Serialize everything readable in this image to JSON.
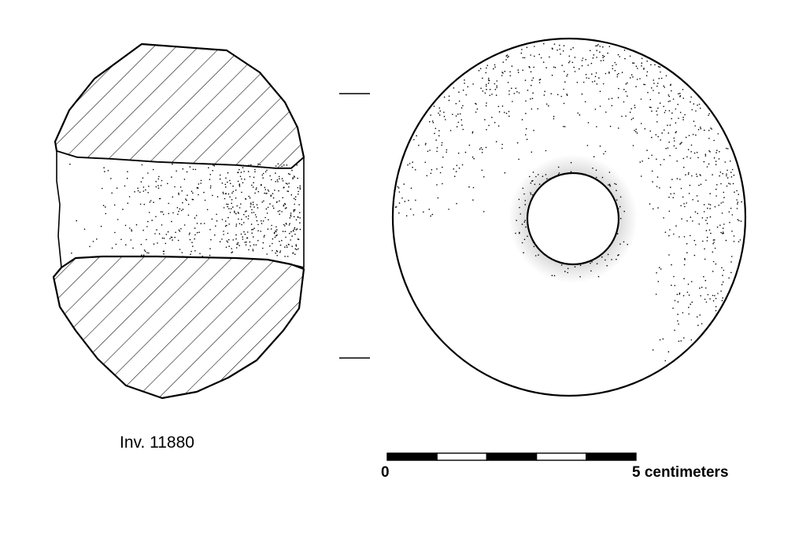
{
  "object": {
    "inventory_label": "Inv. 11880"
  },
  "scale_bar": {
    "start_label": "0",
    "end_label": "5 centimeters",
    "segments": 5
  },
  "views": {
    "section": "cross-section",
    "plan": "top-view"
  },
  "colors": {
    "ink": "#000000",
    "paper": "#ffffff"
  }
}
